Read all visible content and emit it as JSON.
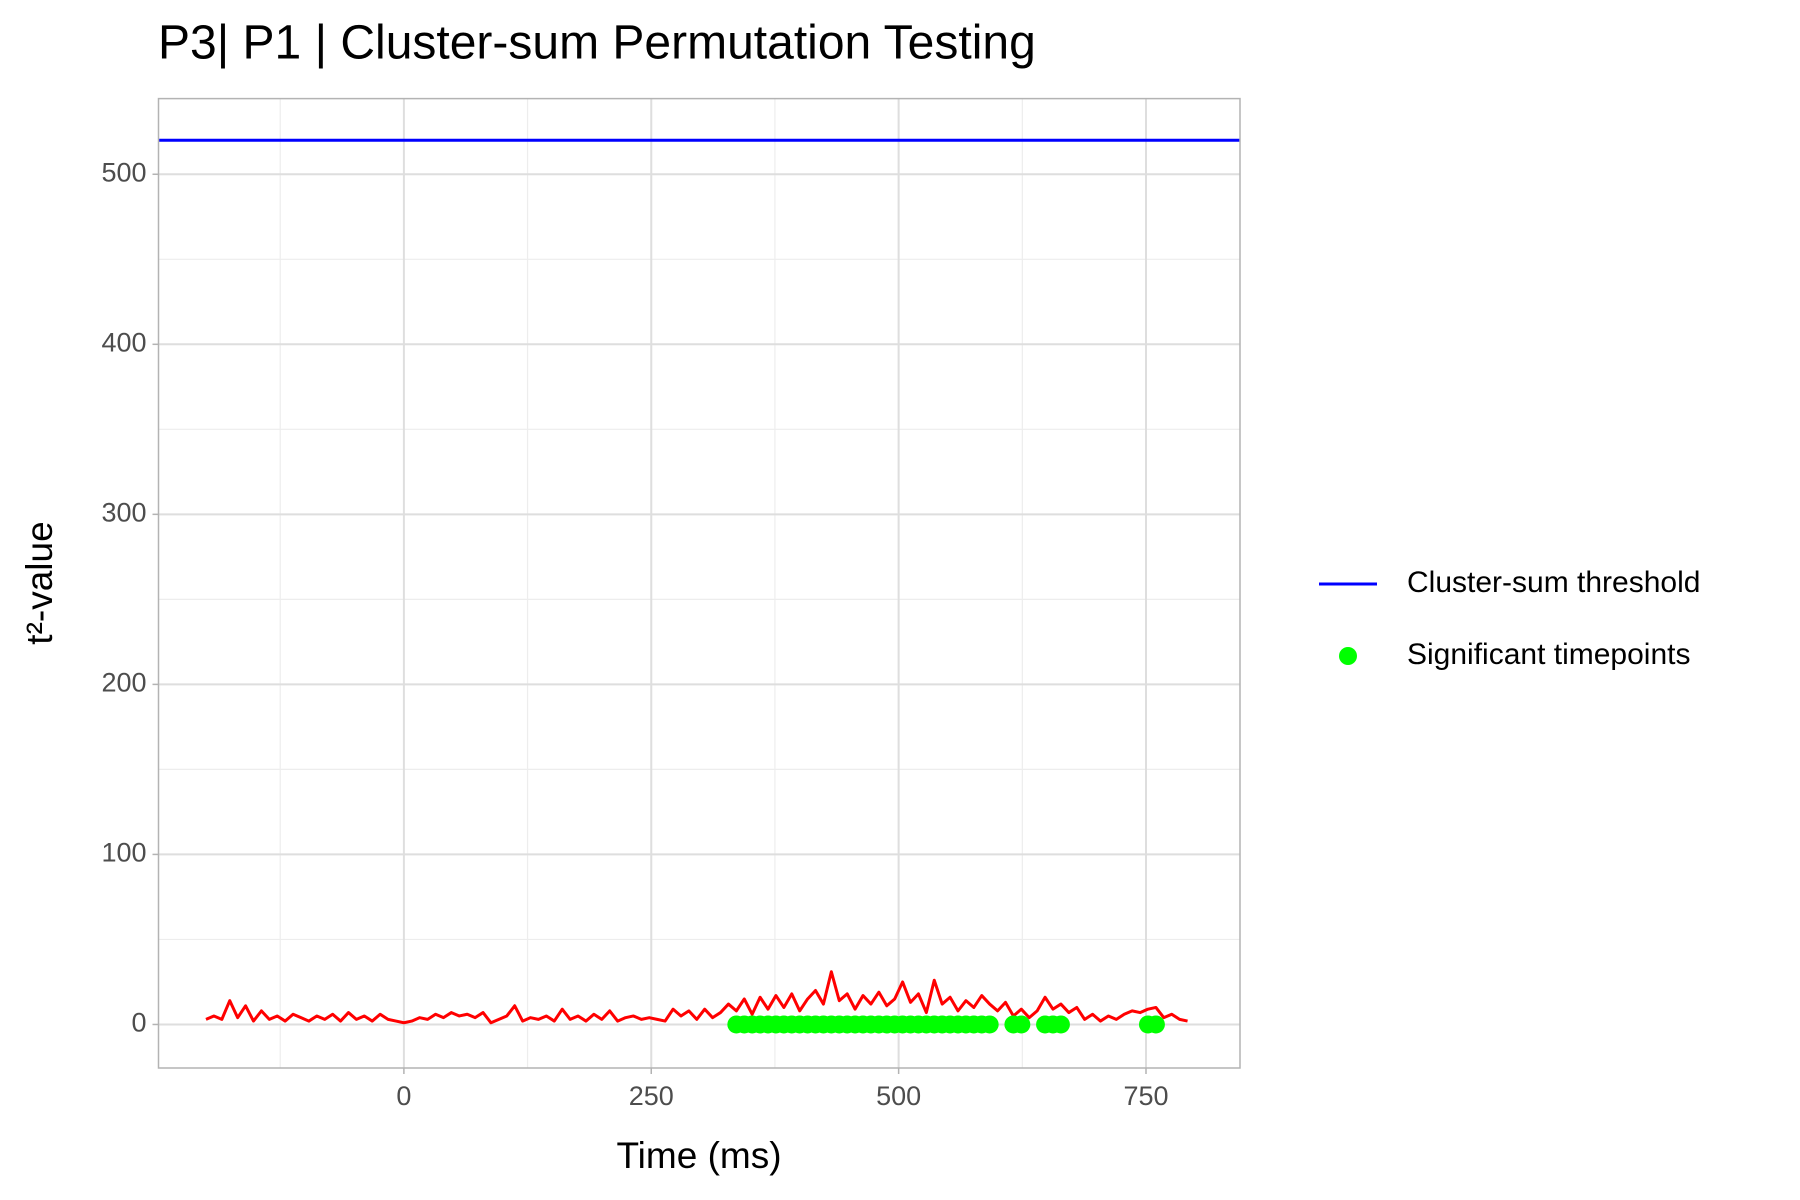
{
  "chart_data": {
    "type": "line",
    "title": "P3| P1 | Cluster-sum Permutation Testing",
    "x_label": "Time (ms)",
    "y_label": "t²-value",
    "xlim": [
      -248,
      845
    ],
    "ylim": [
      -25.6,
      544.5
    ],
    "xticks": [
      0,
      250,
      500,
      750
    ],
    "yticks": [
      0,
      100,
      200,
      300,
      400,
      500
    ],
    "xminorticks": [
      -125,
      125,
      375,
      625
    ],
    "yminorticks": [
      50,
      150,
      250,
      350,
      450
    ],
    "grid": true,
    "legend": "right",
    "series": [
      {
        "kind": "line",
        "color": "#ff0000",
        "x": [
          -200,
          -192,
          -184,
          -176,
          -168,
          -160,
          -152,
          -144,
          -136,
          -128,
          -120,
          -112,
          -104,
          -96,
          -88,
          -80,
          -72,
          -64,
          -56,
          -48,
          -40,
          -32,
          -24,
          -16,
          -8,
          0,
          8,
          16,
          24,
          32,
          40,
          48,
          56,
          64,
          72,
          80,
          88,
          96,
          104,
          112,
          120,
          128,
          136,
          144,
          152,
          160,
          168,
          176,
          184,
          192,
          200,
          208,
          216,
          224,
          232,
          240,
          248,
          256,
          264,
          272,
          280,
          288,
          296,
          304,
          312,
          320,
          328,
          336,
          344,
          352,
          360,
          368,
          376,
          384,
          392,
          400,
          408,
          416,
          424,
          432,
          440,
          448,
          456,
          464,
          472,
          480,
          488,
          496,
          504,
          512,
          520,
          528,
          536,
          544,
          552,
          560,
          568,
          576,
          584,
          592,
          600,
          608,
          616,
          624,
          632,
          640,
          648,
          656,
          664,
          672,
          680,
          688,
          696,
          704,
          712,
          720,
          728,
          736,
          744,
          752,
          760,
          768,
          776,
          784,
          792
        ],
        "values": [
          3,
          5,
          3,
          14,
          4,
          11,
          2,
          8,
          3,
          5,
          2,
          6,
          4,
          2,
          5,
          3,
          6,
          2,
          7,
          3,
          5,
          2,
          6,
          3,
          2,
          1,
          2,
          4,
          3,
          6,
          4,
          7,
          5,
          6,
          4,
          7,
          1,
          3,
          5,
          11,
          2,
          4,
          3,
          5,
          2,
          9,
          3,
          5,
          2,
          6,
          3,
          8,
          2,
          4,
          5,
          3,
          4,
          3,
          2,
          9,
          5,
          8,
          3,
          9,
          4,
          7,
          12,
          8,
          15,
          6,
          16,
          9,
          17,
          10,
          18,
          8,
          15,
          20,
          12,
          31,
          14,
          18,
          9,
          17,
          12,
          19,
          11,
          15,
          25,
          13,
          18,
          7,
          26,
          12,
          16,
          8,
          14,
          10,
          17,
          12,
          8,
          13,
          5,
          9,
          4,
          8,
          16,
          9,
          12,
          7,
          10,
          3,
          6,
          2,
          5,
          3,
          6,
          8,
          7,
          9,
          10,
          4,
          6,
          3,
          2
        ]
      },
      {
        "kind": "hline",
        "name": "Cluster-sum threshold",
        "color": "#0000ff",
        "value": 520
      },
      {
        "kind": "points",
        "name": "Significant timepoints",
        "color": "#00ff00",
        "x": [
          336,
          344,
          352,
          360,
          368,
          376,
          384,
          392,
          400,
          408,
          416,
          424,
          432,
          440,
          448,
          456,
          464,
          472,
          480,
          488,
          496,
          504,
          512,
          520,
          528,
          536,
          544,
          552,
          560,
          568,
          576,
          584,
          592,
          616,
          624,
          648,
          656,
          664,
          752,
          760
        ],
        "values": [
          0,
          0,
          0,
          0,
          0,
          0,
          0,
          0,
          0,
          0,
          0,
          0,
          0,
          0,
          0,
          0,
          0,
          0,
          0,
          0,
          0,
          0,
          0,
          0,
          0,
          0,
          0,
          0,
          0,
          0,
          0,
          0,
          0,
          0,
          0,
          0,
          0,
          0,
          0,
          0
        ]
      }
    ]
  }
}
